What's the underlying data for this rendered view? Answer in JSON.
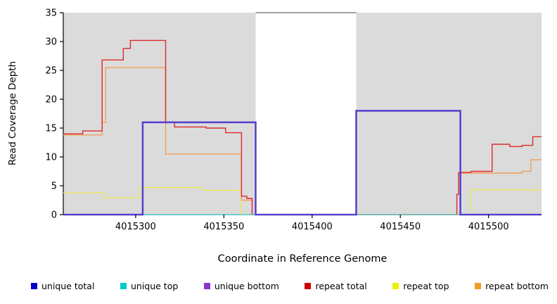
{
  "chart_data": {
    "type": "line",
    "style": "step",
    "title": "",
    "xlabel": "Coordinate in Reference Genome",
    "ylabel": "Read Coverage Depth",
    "x_axis": {
      "min": 4015259,
      "max": 4015530,
      "ticks": [
        4015300,
        4015350,
        4015400,
        4015450,
        4015500
      ]
    },
    "y_axis": {
      "min": 0,
      "max": 35,
      "ticks": [
        0,
        5,
        10,
        15,
        20,
        25,
        30,
        35
      ]
    },
    "shade_color": "#DBDBDB",
    "background_shaded_regions": [
      {
        "from": 4015259,
        "to": 4015368
      },
      {
        "from": 4015425,
        "to": 4015530
      }
    ],
    "gap_top_line": {
      "from": 4015368,
      "to": 4015425,
      "y": 35,
      "color": "#444444"
    },
    "series": [
      {
        "name": "repeat top",
        "color": "#E9E95C",
        "width": 1.4,
        "segments": [
          [
            [
              4015259,
              3.8
            ],
            [
              4015282,
              3.8
            ],
            [
              4015282,
              2.9
            ],
            [
              4015302,
              2.9
            ],
            [
              4015302,
              4.7
            ],
            [
              4015338,
              4.7
            ],
            [
              4015338,
              4.2
            ],
            [
              4015360,
              4.2
            ],
            [
              4015360,
              0
            ],
            [
              4015490,
              0
            ],
            [
              4015490,
              4.3
            ],
            [
              4015530,
              4.3
            ]
          ]
        ]
      },
      {
        "name": "repeat bottom",
        "color": "#F0A058",
        "width": 1.4,
        "segments": [
          [
            [
              4015259,
              13.8
            ],
            [
              4015281,
              13.8
            ],
            [
              4015281,
              16
            ],
            [
              4015283,
              16
            ],
            [
              4015283,
              25.5
            ],
            [
              4015317,
              25.5
            ],
            [
              4015317,
              10.5
            ],
            [
              4015360,
              10.5
            ],
            [
              4015360,
              2.5
            ],
            [
              4015366,
              2.5
            ],
            [
              4015366,
              0
            ],
            [
              4015484,
              0
            ],
            [
              4015484,
              7.2
            ],
            [
              4015519,
              7.2
            ],
            [
              4015519,
              7.5
            ],
            [
              4015524,
              7.5
            ],
            [
              4015524,
              9.5
            ],
            [
              4015530,
              9.5
            ]
          ]
        ]
      },
      {
        "name": "repeat total",
        "color": "#DD2A2A",
        "width": 1.4,
        "segments": [
          [
            [
              4015259,
              14
            ],
            [
              4015270,
              14
            ],
            [
              4015270,
              14.5
            ],
            [
              4015281,
              14.5
            ],
            [
              4015281,
              26.8
            ],
            [
              4015293,
              26.8
            ],
            [
              4015293,
              28.8
            ],
            [
              4015297,
              28.8
            ],
            [
              4015297,
              30.2
            ],
            [
              4015317,
              30.2
            ],
            [
              4015317,
              16
            ],
            [
              4015322,
              16
            ],
            [
              4015322,
              15.2
            ],
            [
              4015340,
              15.2
            ],
            [
              4015340,
              15
            ],
            [
              4015351,
              15
            ],
            [
              4015351,
              14.2
            ],
            [
              4015360,
              14.2
            ],
            [
              4015360,
              3.2
            ],
            [
              4015363,
              3.2
            ],
            [
              4015363,
              2.8
            ],
            [
              4015366,
              2.8
            ],
            [
              4015366,
              0
            ],
            [
              4015482,
              0
            ],
            [
              4015482,
              3.5
            ],
            [
              4015483,
              3.5
            ],
            [
              4015483,
              7.3
            ],
            [
              4015490,
              7.3
            ],
            [
              4015490,
              7.5
            ],
            [
              4015502,
              7.5
            ],
            [
              4015502,
              12.2
            ],
            [
              4015512,
              12.2
            ],
            [
              4015512,
              11.8
            ],
            [
              4015519,
              11.8
            ],
            [
              4015519,
              12
            ],
            [
              4015525,
              12
            ],
            [
              4015525,
              13.5
            ],
            [
              4015530,
              13.5
            ]
          ]
        ]
      },
      {
        "name": "unique top",
        "color": "#5FD3D3",
        "width": 1.4,
        "segments": [
          [
            [
              4015304,
              0
            ],
            [
              4015368,
              0
            ]
          ],
          [
            [
              4015425,
              0
            ],
            [
              4015484,
              0
            ]
          ]
        ]
      },
      {
        "name": "unique bottom",
        "color": "#7B52C8",
        "width": 2.6,
        "segments": [
          [
            [
              4015259,
              0
            ],
            [
              4015304,
              0
            ],
            [
              4015304,
              16
            ],
            [
              4015368,
              16
            ],
            [
              4015368,
              0
            ],
            [
              4015425,
              0
            ],
            [
              4015425,
              18
            ],
            [
              4015484,
              18
            ],
            [
              4015484,
              0
            ],
            [
              4015530,
              0
            ]
          ]
        ]
      },
      {
        "name": "unique total",
        "color": "#3A3AD6",
        "width": 1.3,
        "segments": [
          [
            [
              4015259,
              0
            ],
            [
              4015304,
              0
            ],
            [
              4015304,
              16
            ],
            [
              4015368,
              16
            ],
            [
              4015368,
              0
            ],
            [
              4015425,
              0
            ],
            [
              4015425,
              18
            ],
            [
              4015484,
              18
            ],
            [
              4015484,
              0
            ],
            [
              4015530,
              0
            ]
          ]
        ]
      }
    ],
    "legend": [
      {
        "label": "unique total",
        "color": "#0000CC"
      },
      {
        "label": "unique top",
        "color": "#00CCCC"
      },
      {
        "label": "unique bottom",
        "color": "#8833CC"
      },
      {
        "label": "repeat total",
        "color": "#CC0000"
      },
      {
        "label": "repeat top",
        "color": "#EEEE00"
      },
      {
        "label": "repeat bottom",
        "color": "#F09A28"
      }
    ]
  }
}
